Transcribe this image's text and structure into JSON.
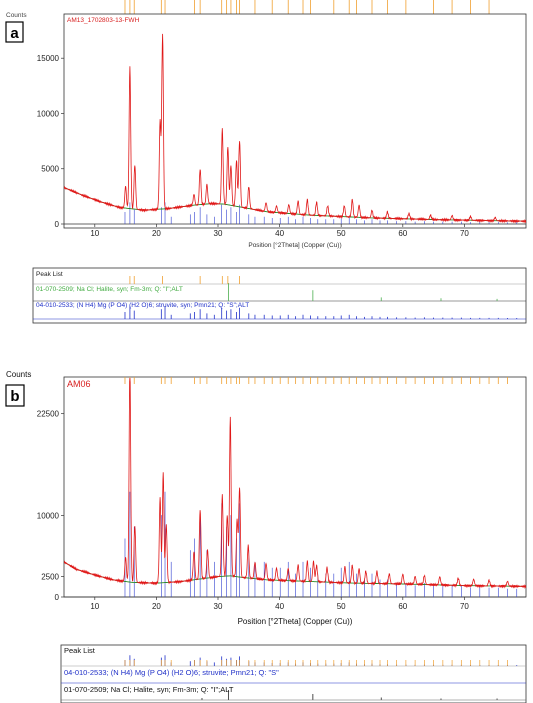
{
  "chart_data": [
    {
      "panel_label": "a",
      "type": "line",
      "ylabel": "Counts",
      "xlabel": "Position [°2Theta] (Copper (Cu))",
      "sample_label": "AM13_1702803-13-FWH",
      "xlim": [
        5,
        80
      ],
      "ylim": [
        0,
        19000
      ],
      "yticks": [
        0,
        5000,
        10000,
        15000
      ],
      "yticks_text": [
        "0",
        "5000",
        "10000",
        "15000"
      ],
      "xticks": [
        10,
        20,
        30,
        40,
        50,
        60,
        70
      ],
      "baseline": [
        [
          5,
          3300
        ],
        [
          8,
          2600
        ],
        [
          11,
          2000
        ],
        [
          14,
          1500
        ],
        [
          18,
          1250
        ],
        [
          22,
          1400
        ],
        [
          26,
          1700
        ],
        [
          29,
          1850
        ],
        [
          31,
          1800
        ],
        [
          34,
          1500
        ],
        [
          38,
          1100
        ],
        [
          45,
          800
        ],
        [
          55,
          550
        ],
        [
          65,
          400
        ],
        [
          75,
          300
        ],
        [
          80,
          250
        ]
      ],
      "peaks": [
        [
          15.0,
          2000
        ],
        [
          15.7,
          12800
        ],
        [
          16.5,
          4000
        ],
        [
          20.6,
          8000
        ],
        [
          21.0,
          15800
        ],
        [
          26.1,
          1000
        ],
        [
          27.1,
          3200
        ],
        [
          28.2,
          1800
        ],
        [
          30.7,
          6800
        ],
        [
          31.6,
          5200
        ],
        [
          32.1,
          3600
        ],
        [
          33.0,
          4200
        ],
        [
          33.5,
          6000
        ],
        [
          35.0,
          2000
        ],
        [
          37.8,
          800
        ],
        [
          39.5,
          600
        ],
        [
          41.5,
          800
        ],
        [
          43.0,
          1200
        ],
        [
          44.5,
          1400
        ],
        [
          46.0,
          1200
        ],
        [
          47.8,
          900
        ],
        [
          50.5,
          1000
        ],
        [
          51.8,
          1600
        ],
        [
          52.9,
          1100
        ],
        [
          55.0,
          700
        ],
        [
          57.5,
          600
        ],
        [
          61.0,
          500
        ],
        [
          64.5,
          400
        ],
        [
          68.0,
          400
        ],
        [
          71.0,
          350
        ],
        [
          75.0,
          300
        ]
      ],
      "peak_list": {
        "title": "Peak List",
        "rows": [
          {
            "name": "01-070-2509; Na Cl; Halite, syn; Fm-3m; Q: \"I\";ALT",
            "color": "#4caf50",
            "x": [
              31.7,
              45.4,
              56.5,
              66.2,
              75.3
            ],
            "h": [
              1.0,
              0.6,
              0.2,
              0.15,
              0.12
            ]
          },
          {
            "name": "04-010-2533; (N H4) Mg (P O4) (H2 O)6; struvite, syn; Pmn21; Q: \"S\";ALT",
            "color": "#2030c8",
            "x": [
              14.9,
              15.7,
              16.4,
              20.8,
              21.4,
              22.4,
              25.5,
              26.2,
              27.1,
              28.2,
              29.4,
              30.6,
              31.4,
              32.1,
              33.0,
              33.5,
              35.0,
              36.0,
              37.5,
              38.8,
              40.1,
              41.4,
              42.6,
              43.8,
              45.0,
              46.2,
              47.5,
              48.8,
              50.0,
              51.3,
              52.5,
              53.8,
              55.0,
              56.3,
              57.5,
              59.0,
              60.5,
              62.0,
              63.5,
              65.0,
              66.5,
              68.0,
              69.5,
              71.0,
              72.5,
              74.0,
              75.5,
              77.0,
              78.5
            ],
            "h": [
              0.5,
              0.9,
              0.6,
              0.7,
              0.9,
              0.3,
              0.4,
              0.5,
              0.7,
              0.4,
              0.3,
              0.8,
              0.6,
              0.7,
              0.5,
              0.8,
              0.4,
              0.3,
              0.3,
              0.25,
              0.25,
              0.3,
              0.2,
              0.3,
              0.25,
              0.2,
              0.2,
              0.2,
              0.25,
              0.3,
              0.2,
              0.15,
              0.2,
              0.15,
              0.15,
              0.12,
              0.12,
              0.1,
              0.12,
              0.1,
              0.1,
              0.1,
              0.1,
              0.08,
              0.08,
              0.08,
              0.08,
              0.07,
              0.07
            ]
          }
        ]
      },
      "marker_lines_top": [
        14.9,
        15.7,
        16.4,
        20.8,
        21.4,
        26.2,
        27.1,
        30.6,
        31.4,
        32.1,
        33.0,
        33.5,
        36.0,
        38.8,
        41.4,
        43.8,
        45.0,
        48.8,
        51.3,
        52.5,
        55.0,
        57.5,
        60.5,
        65.0,
        68.0,
        71.0,
        74.0
      ]
    },
    {
      "panel_label": "b",
      "type": "line",
      "ylabel": "Counts",
      "xlabel": "Position [°2Theta] (Copper (Cu))",
      "sample_label": "AM06",
      "xlim": [
        5,
        80
      ],
      "ylim": [
        0,
        27000
      ],
      "yticks": [
        0,
        2500,
        10000,
        22500
      ],
      "yticks_text": [
        "0",
        "2500",
        "10000",
        "22500"
      ],
      "xticks": [
        10,
        20,
        30,
        40,
        50,
        60,
        70
      ],
      "baseline": [
        [
          5,
          4300
        ],
        [
          7,
          3400
        ],
        [
          10,
          2700
        ],
        [
          13,
          2100
        ],
        [
          16,
          1800
        ],
        [
          20,
          1700
        ],
        [
          24,
          1900
        ],
        [
          28,
          2300
        ],
        [
          30,
          2500
        ],
        [
          32,
          2600
        ],
        [
          34,
          2400
        ],
        [
          38,
          2100
        ],
        [
          45,
          1900
        ],
        [
          52,
          1700
        ],
        [
          60,
          1600
        ],
        [
          70,
          1400
        ],
        [
          80,
          1300
        ]
      ],
      "peaks": [
        [
          15.0,
          3000
        ],
        [
          15.7,
          26500
        ],
        [
          16.5,
          7000
        ],
        [
          20.6,
          10500
        ],
        [
          21.1,
          13500
        ],
        [
          21.6,
          7000
        ],
        [
          26.1,
          3500
        ],
        [
          27.1,
          8500
        ],
        [
          28.3,
          3500
        ],
        [
          30.7,
          10000
        ],
        [
          31.5,
          7500
        ],
        [
          32.0,
          19500
        ],
        [
          33.1,
          7000
        ],
        [
          33.5,
          11000
        ],
        [
          34.9,
          4000
        ],
        [
          36.0,
          2000
        ],
        [
          37.8,
          2000
        ],
        [
          39.5,
          1500
        ],
        [
          41.4,
          1500
        ],
        [
          43.0,
          2000
        ],
        [
          44.5,
          2500
        ],
        [
          45.5,
          2500
        ],
        [
          46.0,
          2000
        ],
        [
          47.7,
          1800
        ],
        [
          50.6,
          2000
        ],
        [
          51.8,
          2200
        ],
        [
          52.9,
          1800
        ],
        [
          54.0,
          1500
        ],
        [
          55.8,
          1500
        ],
        [
          57.8,
          1200
        ],
        [
          60.0,
          1200
        ],
        [
          62.0,
          1000
        ],
        [
          63.5,
          1100
        ],
        [
          66.0,
          1000
        ],
        [
          69.0,
          900
        ],
        [
          71.5,
          800
        ],
        [
          74.0,
          700
        ],
        [
          77.0,
          600
        ]
      ],
      "peak_list": {
        "title": "Peak List",
        "rows": [
          {
            "name": "04-010-2533; (N H4) Mg (P O4) (H2 O)6; struvite; Pmn21; Q: \"S\"",
            "color": "#2030c8",
            "x": [
              14.9,
              15.7,
              16.4,
              20.8,
              21.4,
              22.4,
              25.5,
              26.2,
              27.1,
              28.2,
              29.4,
              30.6,
              31.4,
              32.1,
              33.0,
              33.5,
              35.0,
              36.0,
              37.5,
              38.8,
              40.1,
              41.4,
              42.6,
              43.8,
              45.0,
              46.2,
              47.5,
              48.8,
              50.0,
              51.3,
              52.5,
              53.8,
              55.0,
              56.3,
              57.5,
              59.0,
              60.5,
              62.0,
              63.5,
              65.0,
              66.5,
              68.0,
              69.5,
              71.0,
              72.5,
              74.0,
              75.5,
              77.0,
              78.5
            ],
            "h": [
              0.5,
              0.9,
              0.6,
              0.7,
              0.9,
              0.3,
              0.4,
              0.5,
              0.7,
              0.4,
              0.3,
              0.8,
              0.6,
              0.7,
              0.5,
              0.8,
              0.4,
              0.3,
              0.3,
              0.25,
              0.25,
              0.3,
              0.2,
              0.3,
              0.25,
              0.2,
              0.2,
              0.2,
              0.25,
              0.3,
              0.2,
              0.15,
              0.2,
              0.15,
              0.15,
              0.12,
              0.12,
              0.1,
              0.12,
              0.1,
              0.1,
              0.1,
              0.1,
              0.08,
              0.08,
              0.08,
              0.08,
              0.07,
              0.07
            ]
          },
          {
            "name": "01-070-2509; Na Cl; Halite, syn; Fm-3m; Q: \"I\";ALT",
            "color": "#222222",
            "x": [
              27.4,
              31.7,
              45.4,
              56.5,
              66.2,
              75.3
            ],
            "h": [
              0.2,
              1.0,
              0.6,
              0.25,
              0.15,
              0.15
            ]
          }
        ]
      },
      "marker_lines_top": [
        14.9,
        15.7,
        16.4,
        20.8,
        21.4,
        22.4,
        26.2,
        27.1,
        28.2,
        30.6,
        31.4,
        32.1,
        33.0,
        33.5,
        35.0,
        36.0,
        37.5,
        38.8,
        40.1,
        41.4,
        42.6,
        43.8,
        45.0,
        46.2,
        47.5,
        48.8,
        50.0,
        51.3,
        52.5,
        53.8,
        55.0,
        56.3,
        57.5,
        59.0,
        60.5,
        62.0,
        63.5,
        65.0,
        66.5,
        68.0,
        69.5,
        71.0,
        72.5,
        74.0,
        75.5,
        77.0
      ]
    }
  ]
}
